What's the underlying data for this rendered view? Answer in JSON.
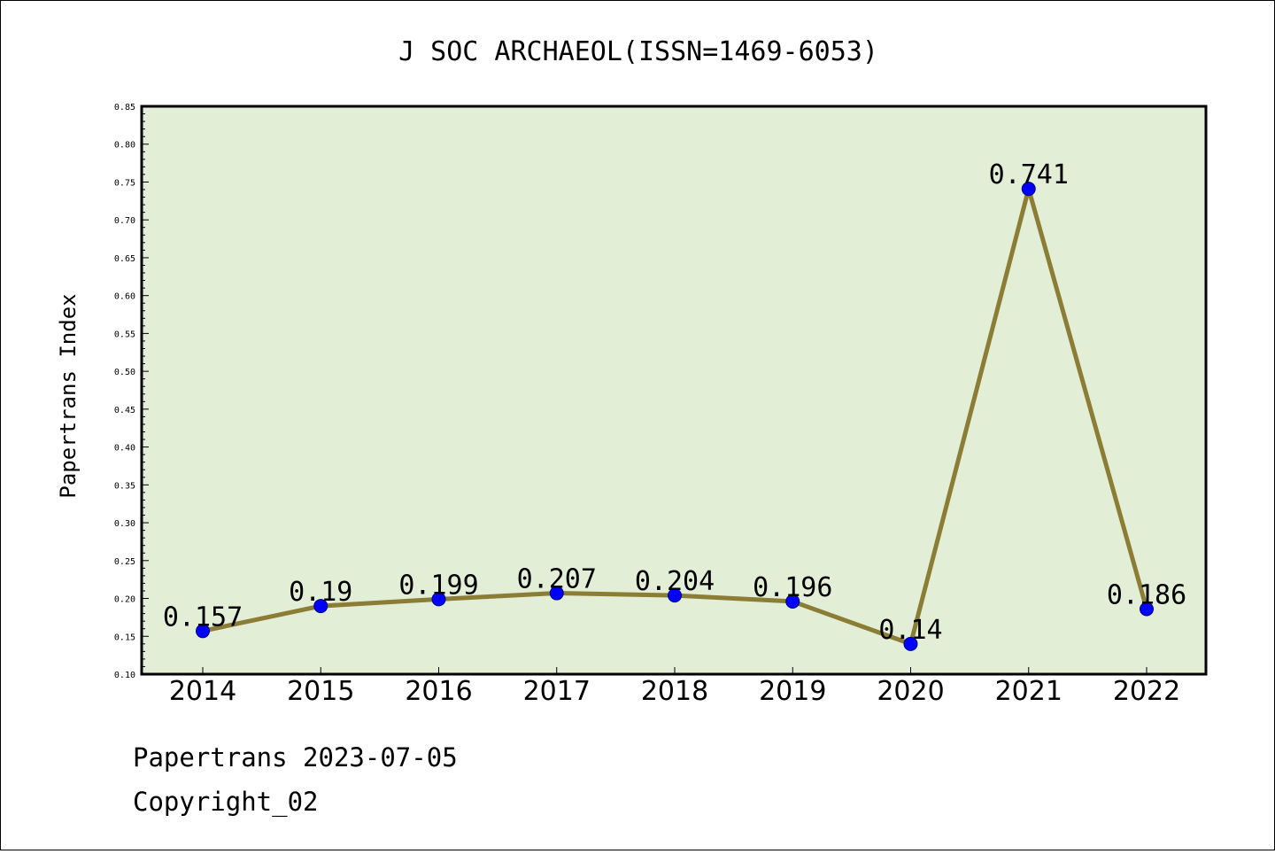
{
  "chart_data": {
    "type": "line",
    "title": "J SOC ARCHAEOL(ISSN=1469-6053)",
    "xlabel": "",
    "ylabel": "Papertrans Index",
    "categories": [
      "2014",
      "2015",
      "2016",
      "2017",
      "2018",
      "2019",
      "2020",
      "2021",
      "2022"
    ],
    "values": [
      0.157,
      0.19,
      0.199,
      0.207,
      0.204,
      0.196,
      0.14,
      0.741,
      0.186
    ],
    "data_labels": [
      "0.157",
      "0.19",
      "0.199",
      "0.207",
      "0.204",
      "0.196",
      "0.14",
      "0.741",
      "0.186"
    ],
    "ylim": [
      0.1,
      0.85
    ],
    "yticks": [
      "0.10",
      "0.15",
      "0.20",
      "0.25",
      "0.30",
      "0.35",
      "0.40",
      "0.45",
      "0.50",
      "0.55",
      "0.60",
      "0.65",
      "0.70",
      "0.75",
      "0.80",
      "0.85"
    ],
    "grid": false,
    "legend": "none"
  },
  "colors": {
    "plot_background": "#e2efd6",
    "line": "#8b7d35",
    "marker": "#0000ff",
    "marker_edge": "#000080"
  },
  "footer": {
    "line1": "Papertrans 2023-07-05",
    "line2": "Copyright_02"
  }
}
